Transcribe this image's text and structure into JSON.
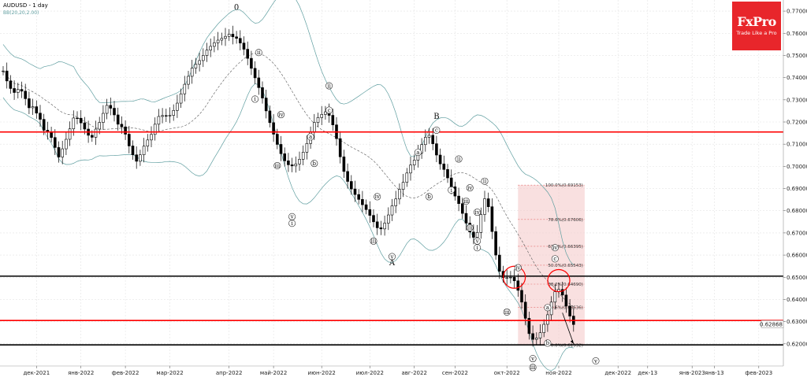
{
  "chart_data": {
    "type": "candlestick",
    "title": "AUDUSD - 1 day",
    "indicator_label": "BB(20,20,2.00)",
    "ylim": [
      0.61,
      0.775
    ],
    "y_ticks": [
      0.77,
      0.76,
      0.75,
      0.74,
      0.73,
      0.72,
      0.71,
      0.7,
      0.69,
      0.68,
      0.67,
      0.66,
      0.65,
      0.64,
      0.63,
      0.62
    ],
    "y_tick_labels": [
      "0.77000",
      "0.76000",
      "0.75000",
      "0.74000",
      "0.73000",
      "0.72000",
      "0.71000",
      "0.70000",
      "0.69000",
      "0.68000",
      "0.67000",
      "0.66000",
      "0.65000",
      "0.64000",
      "0.63000",
      "0.62000"
    ],
    "x_tick_labels": [
      "дек-2021",
      "янв-2022",
      "фев-2022",
      "мар-2022",
      "апр-2022",
      "май-2022",
      "июн-2022",
      "июл-2022",
      "авг-2022",
      "сен-2022",
      "окт-2022",
      "ноя-2022",
      "дек-2022",
      "дек-13",
      "янв-2023",
      "янв-13",
      "фев-2023"
    ],
    "x_tick_index": [
      9,
      21,
      33,
      45,
      61,
      73,
      86,
      99,
      111,
      122,
      136,
      150,
      166,
      174,
      186,
      192,
      204
    ],
    "current_price_label": "0.62868",
    "current_price": 0.62868,
    "horizontal_levels": [
      {
        "value": 0.7155,
        "color": "#ff0000"
      },
      {
        "value": 0.6505,
        "color": "#000000"
      },
      {
        "value": 0.6305,
        "color": "#ff0000"
      },
      {
        "value": 0.6195,
        "color": "#000000"
      }
    ],
    "fibonacci": {
      "levels": [
        {
          "label": "100.0%(0.69153)",
          "value": 0.69153
        },
        {
          "label": "78.6%(0.67606)",
          "value": 0.67606
        },
        {
          "label": "61.8%(0.66395)",
          "value": 0.66395
        },
        {
          "label": "50.0%(0.65543)",
          "value": 0.65543
        },
        {
          "label": "38.2%(0.64690)",
          "value": 0.6469
        },
        {
          "label": "23.6%(0.63636)",
          "value": 0.63636
        },
        {
          "label": "0.0%(0.61932)",
          "value": 0.61932
        }
      ],
      "color": "#f4c6c6"
    },
    "wave_labels": [
      {
        "text": "0",
        "i": 63,
        "v": 0.7705,
        "big": true
      },
      {
        "text": "ii",
        "i": 69,
        "v": 0.7505,
        "circled": true
      },
      {
        "text": "i",
        "i": 68,
        "v": 0.7295,
        "circled": true
      },
      {
        "text": "iv",
        "i": 75,
        "v": 0.7225,
        "circled": true
      },
      {
        "text": "iii",
        "i": 74,
        "v": 0.6995,
        "circled": true
      },
      {
        "text": "v",
        "i": 78,
        "v": 0.6765,
        "circled": true
      },
      {
        "text": "i",
        "i": 78,
        "v": 0.6735,
        "circled": true
      },
      {
        "text": "ii",
        "i": 88,
        "v": 0.7355,
        "circled": true
      },
      {
        "text": "c",
        "i": 88,
        "v": 0.7245,
        "circled": true
      },
      {
        "text": "a",
        "i": 83,
        "v": 0.7125,
        "circled": true
      },
      {
        "text": "b",
        "i": 84,
        "v": 0.7005,
        "circled": true
      },
      {
        "text": "iv",
        "i": 101,
        "v": 0.6855,
        "circled": true
      },
      {
        "text": "iii",
        "i": 100,
        "v": 0.6655,
        "circled": true
      },
      {
        "text": "v",
        "i": 105,
        "v": 0.6585,
        "circled": true
      },
      {
        "text": "A",
        "i": 105,
        "v": 0.6555,
        "big": true
      },
      {
        "text": "a",
        "i": 112,
        "v": 0.7055,
        "circled": true
      },
      {
        "text": "b",
        "i": 115,
        "v": 0.6855,
        "circled": true
      },
      {
        "text": "B",
        "i": 117,
        "v": 0.7215,
        "big": true
      },
      {
        "text": "c",
        "i": 117,
        "v": 0.7155,
        "circled": true
      },
      {
        "text": "ii",
        "i": 123,
        "v": 0.7025,
        "circled": true
      },
      {
        "text": "i",
        "i": 121,
        "v": 0.6885,
        "circled": true
      },
      {
        "text": "iv",
        "i": 126,
        "v": 0.6895,
        "circled": true
      },
      {
        "text": "iii",
        "i": 125,
        "v": 0.6835,
        "circled": true
      },
      {
        "text": "ii",
        "i": 130,
        "v": 0.6925,
        "circled": true
      },
      {
        "text": "iv",
        "i": 128,
        "v": 0.6785,
        "circled": true
      },
      {
        "text": "iii",
        "i": 126,
        "v": 0.6715,
        "circled": true
      },
      {
        "text": "v",
        "i": 128,
        "v": 0.6655,
        "circled": true
      },
      {
        "text": "i",
        "i": 128,
        "v": 0.6625,
        "circled": true
      },
      {
        "text": "iv",
        "i": 139,
        "v": 0.6535,
        "circled": true
      },
      {
        "text": "iii",
        "i": 136,
        "v": 0.6335,
        "circled": true
      },
      {
        "text": "v",
        "i": 143,
        "v": 0.6125,
        "circled": true
      },
      {
        "text": "iii",
        "i": 143,
        "v": 0.6085,
        "circled": true
      },
      {
        "text": "a",
        "i": 147,
        "v": 0.6355,
        "circled": true
      },
      {
        "text": "b",
        "i": 147,
        "v": 0.6195,
        "circled": true
      },
      {
        "text": "iv",
        "i": 149,
        "v": 0.6625,
        "circled": true
      },
      {
        "text": "c",
        "i": 149,
        "v": 0.6575,
        "circled": true
      },
      {
        "text": "v",
        "i": 160,
        "v": 0.6115,
        "circled": true
      }
    ],
    "projection": [
      {
        "i": 151,
        "v": 0.634
      },
      {
        "i": 154,
        "v": 0.62
      }
    ],
    "highlight_circles": [
      {
        "i": 138,
        "v": 0.65
      },
      {
        "i": 150,
        "v": 0.6485
      }
    ],
    "bars": {
      "start_index": 0,
      "open": [
        0.743,
        0.743,
        0.7385,
        0.7351,
        0.7333,
        0.7347,
        0.7339,
        0.7305,
        0.7264,
        0.7269,
        0.724,
        0.7212,
        0.7163,
        0.7155,
        0.713,
        0.7085,
        0.7042,
        0.7079,
        0.7122,
        0.7169,
        0.7218,
        0.7217,
        0.7196,
        0.7168,
        0.714,
        0.7131,
        0.7168,
        0.7198,
        0.7239,
        0.7275,
        0.7262,
        0.7232,
        0.719,
        0.7178,
        0.7145,
        0.7092,
        0.7052,
        0.7023,
        0.7052,
        0.7091,
        0.7119,
        0.7144,
        0.719,
        0.7225,
        0.7229,
        0.7228,
        0.723,
        0.7252,
        0.7285,
        0.7327,
        0.737,
        0.7406,
        0.7443,
        0.746,
        0.7477,
        0.75,
        0.7524,
        0.7541,
        0.7557,
        0.7569,
        0.7577,
        0.7586,
        0.7596,
        0.7584,
        0.7577,
        0.7556,
        0.7528,
        0.7487,
        0.7442,
        0.7399,
        0.7355,
        0.7308,
        0.725,
        0.7197,
        0.7145,
        0.7099,
        0.7057,
        0.7025,
        0.7007,
        0.7002,
        0.7011,
        0.7032,
        0.7064,
        0.7103,
        0.7153,
        0.7198,
        0.722,
        0.7234,
        0.7246,
        0.723,
        0.7187,
        0.7125,
        0.7043,
        0.6977,
        0.6932,
        0.6898,
        0.6873,
        0.6851,
        0.6827,
        0.6805,
        0.6779,
        0.675,
        0.6723,
        0.6718,
        0.6744,
        0.6781,
        0.6822,
        0.6853,
        0.6896,
        0.6928,
        0.697,
        0.7006,
        0.7028,
        0.706,
        0.7098,
        0.7131,
        0.714,
        0.7102,
        0.7051,
        0.7011,
        0.6986,
        0.6948,
        0.6908,
        0.6866,
        0.6832,
        0.6788,
        0.6744,
        0.6704,
        0.668,
        0.6702,
        0.6783,
        0.6854,
        0.6818,
        0.6706,
        0.66,
        0.6527,
        0.6498,
        0.6498,
        0.65,
        0.6484,
        0.6441,
        0.6388,
        0.6315,
        0.6246,
        0.622,
        0.6226,
        0.625,
        0.6288,
        0.6331,
        0.6388,
        0.6435,
        0.6445,
        0.642,
        0.637,
        0.6325
      ],
      "close": [
        0.743,
        0.7385,
        0.7351,
        0.7333,
        0.7347,
        0.7339,
        0.7305,
        0.7264,
        0.7269,
        0.724,
        0.7212,
        0.7163,
        0.7155,
        0.713,
        0.7085,
        0.7042,
        0.7079,
        0.7122,
        0.7169,
        0.7218,
        0.7217,
        0.7196,
        0.7168,
        0.714,
        0.7131,
        0.7168,
        0.7198,
        0.7239,
        0.7275,
        0.7262,
        0.7232,
        0.719,
        0.7178,
        0.7145,
        0.7092,
        0.7052,
        0.7023,
        0.7052,
        0.7091,
        0.7119,
        0.7144,
        0.719,
        0.7225,
        0.7229,
        0.7228,
        0.723,
        0.7252,
        0.7285,
        0.7327,
        0.737,
        0.7406,
        0.7443,
        0.746,
        0.7477,
        0.75,
        0.7524,
        0.7541,
        0.7557,
        0.7569,
        0.7577,
        0.7586,
        0.7596,
        0.7584,
        0.7577,
        0.7556,
        0.7528,
        0.7487,
        0.7442,
        0.7399,
        0.7355,
        0.7308,
        0.725,
        0.7197,
        0.7145,
        0.7099,
        0.7057,
        0.7025,
        0.7007,
        0.7002,
        0.7011,
        0.7032,
        0.7064,
        0.7103,
        0.7153,
        0.7198,
        0.722,
        0.7234,
        0.7246,
        0.723,
        0.7187,
        0.7125,
        0.7043,
        0.6977,
        0.6932,
        0.6898,
        0.6873,
        0.6851,
        0.6827,
        0.6805,
        0.6779,
        0.675,
        0.6723,
        0.6718,
        0.6744,
        0.6781,
        0.6822,
        0.6853,
        0.6896,
        0.6928,
        0.697,
        0.7006,
        0.7028,
        0.706,
        0.7098,
        0.7131,
        0.714,
        0.7102,
        0.7051,
        0.7011,
        0.6986,
        0.6948,
        0.6908,
        0.6866,
        0.6832,
        0.6788,
        0.6744,
        0.6704,
        0.668,
        0.6702,
        0.6783,
        0.6854,
        0.6818,
        0.6706,
        0.66,
        0.6527,
        0.6498,
        0.6498,
        0.65,
        0.6484,
        0.6441,
        0.6388,
        0.6315,
        0.6246,
        0.622,
        0.6226,
        0.625,
        0.6288,
        0.6331,
        0.6388,
        0.6435,
        0.6445,
        0.642,
        0.637,
        0.6325,
        0.6287
      ]
    }
  },
  "brand": {
    "name": "FxPro",
    "tagline": "Trade Like a Pro"
  }
}
